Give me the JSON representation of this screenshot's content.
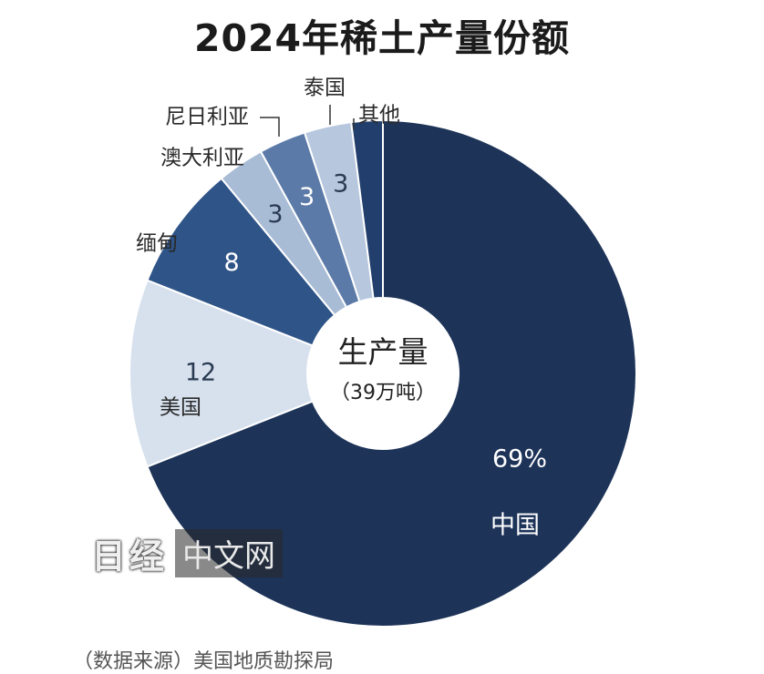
{
  "chart_data": {
    "type": "donut",
    "title": "2024年稀土产量份额",
    "center_label": "生产量",
    "center_sublabel": "（39万吨）",
    "unit": "%",
    "slices": [
      {
        "category": "中国",
        "value": 69,
        "value_label": "69%",
        "color": "#1d3358"
      },
      {
        "category": "美国",
        "value": 12,
        "value_label": "12",
        "color": "#d7e1ee"
      },
      {
        "category": "缅甸",
        "value": 8,
        "value_label": "8",
        "color": "#2e5488"
      },
      {
        "category": "澳大利亚",
        "value": 3,
        "value_label": "3",
        "color": "#a9bcd6"
      },
      {
        "category": "尼日利亚",
        "value": 3,
        "value_label": "3",
        "color": "#5b7aa8"
      },
      {
        "category": "泰国",
        "value": 3,
        "value_label": "3",
        "color": "#b6c7de"
      },
      {
        "category": "其他",
        "value": 2,
        "value_label": "",
        "color": "#213e6c"
      }
    ]
  },
  "watermark": {
    "text": "中文网",
    "logo": "日经"
  },
  "source": "（数据来源）美国地质勘探局"
}
